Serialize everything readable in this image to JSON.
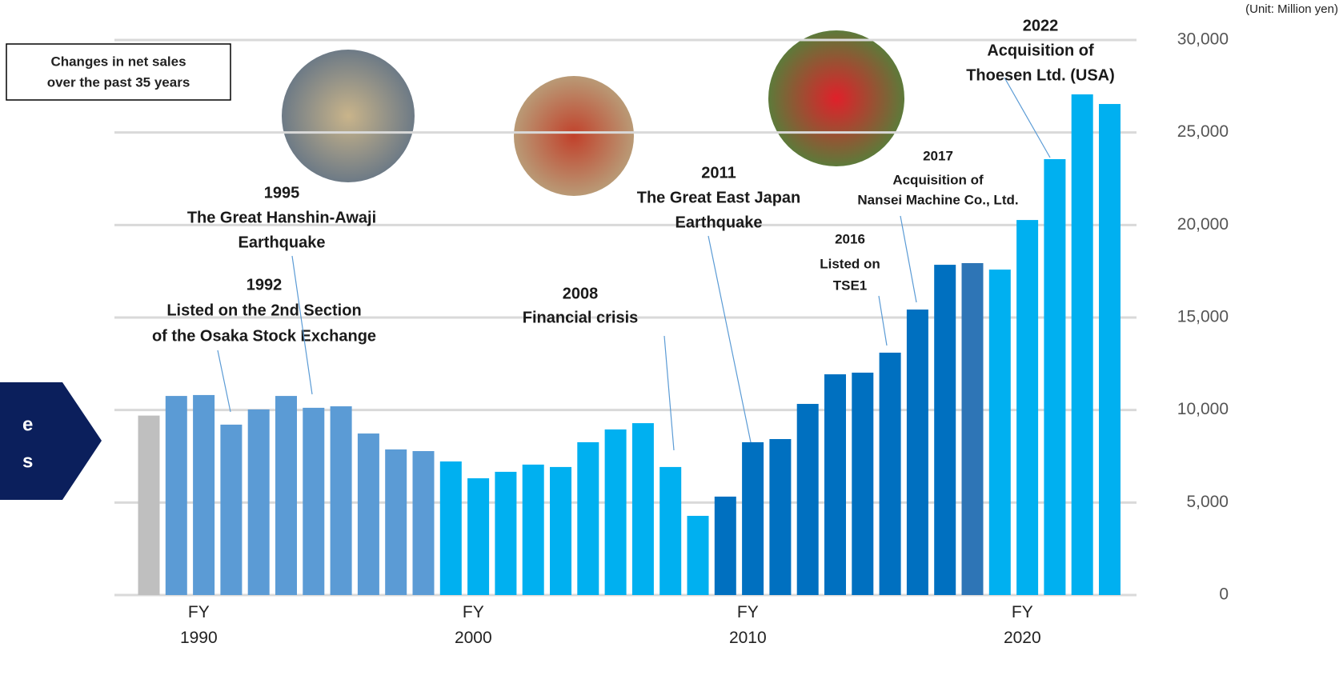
{
  "chart_data": {
    "type": "bar",
    "title_lines": [
      "Changes in net sales",
      "over the past 35 years"
    ],
    "unit_label": "(Unit: Million yen)",
    "side_tab_lines": [
      "e",
      "s"
    ],
    "categories": [
      null,
      "FY 1990",
      null,
      null,
      null,
      null,
      null,
      null,
      null,
      null,
      null,
      "FY 2000",
      null,
      null,
      null,
      null,
      null,
      null,
      null,
      null,
      null,
      "FY 2010",
      null,
      null,
      null,
      null,
      null,
      null,
      null,
      null,
      null,
      "FY 2020",
      null,
      null,
      null,
      null
    ],
    "values": [
      9700,
      10760,
      10810,
      9210,
      10030,
      10760,
      10120,
      10200,
      8730,
      7870,
      7780,
      7220,
      6310,
      6660,
      7050,
      6920,
      8260,
      8950,
      9290,
      6920,
      4280,
      5320,
      8260,
      8430,
      10330,
      11930,
      12020,
      13100,
      15430,
      17850,
      17940,
      17590,
      20270,
      23560,
      27060,
      26540
    ],
    "colors": [
      "#bfbfbf",
      "#5b9bd5",
      "#5b9bd5",
      "#5b9bd5",
      "#5b9bd5",
      "#5b9bd5",
      "#5b9bd5",
      "#5b9bd5",
      "#5b9bd5",
      "#5b9bd5",
      "#5b9bd5",
      "#00b0f0",
      "#00b0f0",
      "#00b0f0",
      "#00b0f0",
      "#00b0f0",
      "#00b0f0",
      "#00b0f0",
      "#00b0f0",
      "#00b0f0",
      "#00b0f0",
      "#0070c0",
      "#0070c0",
      "#0070c0",
      "#0070c0",
      "#0070c0",
      "#0070c0",
      "#0070c0",
      "#0070c0",
      "#0070c0",
      "#2e75b6",
      "#00b0f0",
      "#00b0f0",
      "#00b0f0",
      "#00b0f0",
      "#00b0f0"
    ],
    "ylim": [
      0,
      30000
    ],
    "yticks": [
      {
        "value": 0,
        "label": "0"
      },
      {
        "value": 5000,
        "label": "5,000"
      },
      {
        "value": 10000,
        "label": "10,000"
      },
      {
        "value": 15000,
        "label": "15,000"
      },
      {
        "value": 20000,
        "label": "20,000"
      },
      {
        "value": 25000,
        "label": "25,000"
      },
      {
        "value": 30000,
        "label": "30,000"
      }
    ],
    "grid": true,
    "annotations": [
      {
        "lines": [
          "1992",
          "Listed on the 2nd Section",
          "of the Osaka Stock Exchange"
        ]
      },
      {
        "lines": [
          "1995",
          "The Great Hanshin-Awaji",
          "Earthquake"
        ]
      },
      {
        "lines": [
          "2008",
          "Financial crisis"
        ]
      },
      {
        "lines": [
          "2011",
          "The Great East Japan",
          "Earthquake"
        ]
      },
      {
        "lines": [
          "2016",
          "Listed on",
          "TSE1"
        ]
      },
      {
        "lines": [
          "2017",
          "Acquisition of",
          "Nansei Machine Co., Ltd."
        ]
      },
      {
        "lines": [
          "2022",
          "Acquisition of",
          "Thoesen Ltd. (USA)"
        ]
      }
    ]
  }
}
